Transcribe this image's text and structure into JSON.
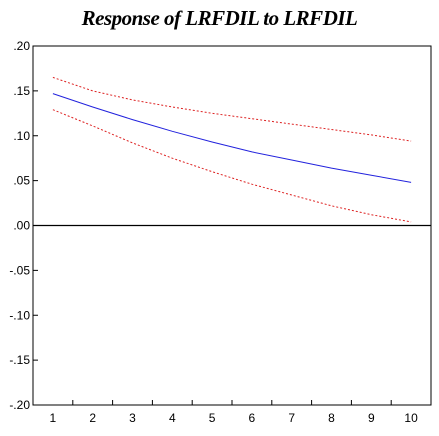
{
  "chart_data": {
    "type": "line",
    "title": "Response of LRFDIL to LRFDIL",
    "x": [
      1,
      2,
      3,
      4,
      5,
      6,
      7,
      8,
      9,
      10
    ],
    "x_tick_labels": [
      "1",
      "2",
      "3",
      "4",
      "5",
      "6",
      "7",
      "8",
      "9",
      "10"
    ],
    "y_tick_labels": [
      ".20",
      ".15",
      ".10",
      ".05",
      ".00",
      "-.05",
      "-.10",
      "-.15",
      "-.20"
    ],
    "y_ticks": [
      0.2,
      0.15,
      0.1,
      0.05,
      0.0,
      -0.05,
      -0.1,
      -0.15,
      -0.2
    ],
    "xlim": [
      0.5,
      10.5
    ],
    "ylim": [
      -0.2,
      0.2
    ],
    "zero_line": 0.0,
    "grid": false,
    "series": [
      {
        "color": "#2222dd",
        "style": "solid",
        "values": [
          0.147,
          0.132,
          0.118,
          0.105,
          0.093,
          0.082,
          0.073,
          0.064,
          0.056,
          0.048
        ]
      },
      {
        "color": "#dd2222",
        "style": "dashed",
        "values": [
          0.165,
          0.15,
          0.14,
          0.132,
          0.125,
          0.119,
          0.113,
          0.107,
          0.101,
          0.094
        ]
      },
      {
        "color": "#dd2222",
        "style": "dashed",
        "values": [
          0.129,
          0.111,
          0.092,
          0.075,
          0.06,
          0.046,
          0.034,
          0.022,
          0.012,
          0.004
        ]
      }
    ]
  }
}
